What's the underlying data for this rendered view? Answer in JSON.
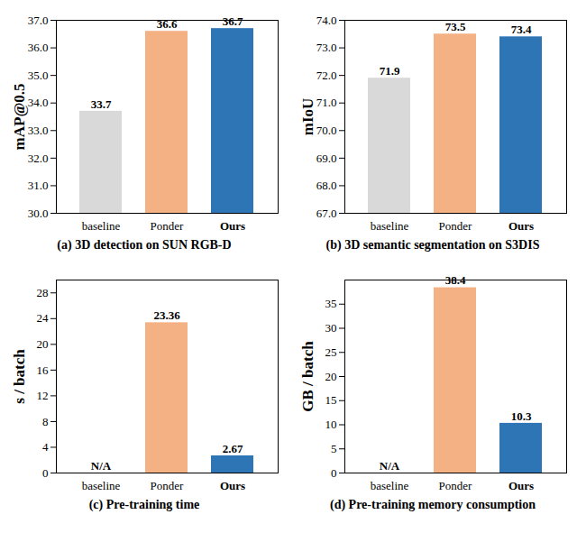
{
  "chart_data": [
    {
      "type": "bar",
      "title": "(a) 3D detection on SUN RGB-D",
      "y_label": "mAP@0.5",
      "categories": [
        "baseline",
        "Ponder",
        "Ours"
      ],
      "values": [
        33.7,
        36.6,
        36.7
      ],
      "colors": [
        "#d9d9d9",
        "#f4b183",
        "#2e75b6"
      ],
      "ylim": [
        30,
        37
      ],
      "yticks": [
        30,
        31,
        32,
        33,
        34,
        35,
        36,
        37
      ],
      "data_labels": true
    },
    {
      "type": "bar",
      "title": "(b) 3D semantic segmentation on S3DIS",
      "y_label": "mIoU",
      "categories": [
        "baseline",
        "Ponder",
        "Ours"
      ],
      "values": [
        71.9,
        73.5,
        73.4
      ],
      "colors": [
        "#d9d9d9",
        "#f4b183",
        "#2e75b6"
      ],
      "ylim": [
        67,
        74
      ],
      "yticks": [
        67,
        68,
        69,
        70,
        71,
        72,
        73,
        74
      ],
      "data_labels": true
    },
    {
      "type": "bar",
      "title": "(c) Pre-training time",
      "y_label": "s / batch",
      "categories": [
        "baseline",
        "Ponder",
        "Ours"
      ],
      "values": [
        null,
        23.36,
        2.67
      ],
      "value_labels": [
        "N/A",
        "23.36",
        "2.67"
      ],
      "colors": [
        "#d9d9d9",
        "#f4b183",
        "#2e75b6"
      ],
      "ylim": [
        0,
        30
      ],
      "yticks": [
        0,
        4,
        8,
        12,
        16,
        20,
        24,
        28
      ],
      "data_labels": true
    },
    {
      "type": "bar",
      "title": "(d) Pre-training memory consumption",
      "y_label": "GB / batch",
      "categories": [
        "baseline",
        "Ponder",
        "Ours"
      ],
      "values": [
        null,
        38.4,
        10.3
      ],
      "value_labels": [
        "N/A",
        "38.4",
        "10.3"
      ],
      "colors": [
        "#d9d9d9",
        "#f4b183",
        "#2e75b6"
      ],
      "ylim": [
        0,
        40
      ],
      "yticks": [
        0,
        5,
        10,
        15,
        20,
        25,
        30,
        35
      ],
      "data_labels": true
    }
  ]
}
